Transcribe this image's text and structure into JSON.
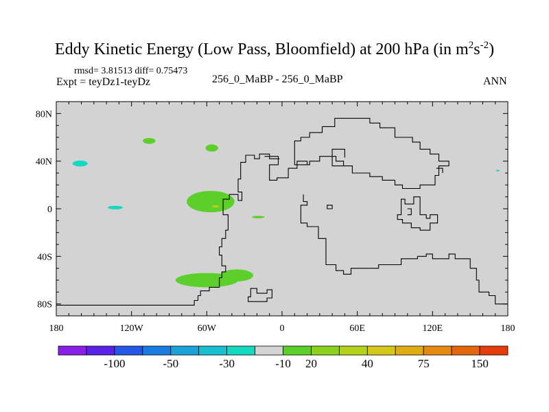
{
  "chart_data": {
    "type": "heatmap",
    "title": "Eddy Kinetic Energy (Low Pass, Bloomfield) at 200 hPa (in m",
    "title_units": {
      "sup1": "2",
      "mid": "s",
      "sup2": "-2",
      "close": ")"
    },
    "stats": "rmsd= 3.81513 diff= 0.75473",
    "expt": "Expt = teyDz1-teyDz",
    "center_label": "256_0_MaBP - 256_0_MaBP",
    "season": "ANN",
    "xlim": [
      -180,
      180
    ],
    "ylim": [
      -90,
      90
    ],
    "x_ticks": [
      {
        "value": -180,
        "label": "180"
      },
      {
        "value": -120,
        "label": "120W"
      },
      {
        "value": -60,
        "label": "60W"
      },
      {
        "value": 0,
        "label": "0"
      },
      {
        "value": 60,
        "label": "60E"
      },
      {
        "value": 120,
        "label": "120E"
      },
      {
        "value": 180,
        "label": "180"
      }
    ],
    "y_ticks": [
      {
        "value": 80,
        "label": "80N"
      },
      {
        "value": 40,
        "label": "40N"
      },
      {
        "value": 0,
        "label": "0"
      },
      {
        "value": -40,
        "label": "40S"
      },
      {
        "value": -80,
        "label": "80S"
      }
    ],
    "background_color": "#d3d3d3",
    "colorbar": {
      "colors": [
        "#8a1fe8",
        "#5a22e6",
        "#2457e6",
        "#1a7be0",
        "#1aa2d8",
        "#18c0d0",
        "#14d8c0",
        "#d3d3d3",
        "#5ccf2a",
        "#8ad21e",
        "#b4d21a",
        "#d4c81a",
        "#e0ac14",
        "#e48a10",
        "#e4660c",
        "#e43c0c"
      ],
      "labels": [
        {
          "after_index": 1,
          "label": "-100"
        },
        {
          "after_index": 3,
          "label": "-50"
        },
        {
          "after_index": 5,
          "label": "-30"
        },
        {
          "after_index": 7,
          "label": "-10"
        },
        {
          "after_index": 8,
          "label": "20"
        },
        {
          "after_index": 10,
          "label": "40"
        },
        {
          "after_index": 12,
          "label": "75"
        },
        {
          "after_index": 14,
          "label": "150"
        }
      ]
    },
    "regions": [
      {
        "name": "anomaly-green-a",
        "color": "#5ccf2a",
        "lon": -106,
        "lat": 57,
        "rlon": 5,
        "rlat": 2.5
      },
      {
        "name": "anomaly-green-b",
        "color": "#5ccf2a",
        "lon": -56,
        "lat": 51,
        "rlon": 5,
        "rlat": 3
      },
      {
        "name": "anomaly-cyan-a",
        "color": "#14d8c0",
        "lon": -161,
        "lat": 38,
        "rlon": 6,
        "rlat": 2.5
      },
      {
        "name": "anomaly-cyan-b",
        "color": "#14d8c0",
        "lon": -133,
        "lat": 1,
        "rlon": 6,
        "rlat": 1.5
      },
      {
        "name": "anomaly-cyan-c",
        "color": "#14d8c0",
        "lon": 172,
        "lat": 32,
        "rlon": 1.5,
        "rlat": 0.7
      },
      {
        "name": "anomaly-green-c",
        "color": "#5ccf2a",
        "lon": -57,
        "lat": 6,
        "rlon": 19,
        "rlat": 9
      },
      {
        "name": "anomaly-yellow-a",
        "color": "#b4d21a",
        "lon": -53,
        "lat": 2,
        "rlon": 3,
        "rlat": 1
      },
      {
        "name": "anomaly-green-d",
        "color": "#5ccf2a",
        "lon": -19,
        "lat": -7,
        "rlon": 5,
        "rlat": 1
      },
      {
        "name": "anomaly-green-e",
        "color": "#5ccf2a",
        "lon": -60,
        "lat": -60,
        "rlon": 25,
        "rlat": 6
      },
      {
        "name": "anomaly-green-f",
        "color": "#5ccf2a",
        "lon": -36,
        "lat": -56,
        "rlon": 13,
        "rlat": 5
      }
    ],
    "land_outlines": [
      {
        "name": "coastline-americas-west",
        "closed": false,
        "points": [
          [
            -180,
            -81
          ],
          [
            -70,
            -81
          ],
          [
            -70,
            -77
          ],
          [
            -67,
            -77
          ],
          [
            -67,
            -73
          ],
          [
            -65,
            -73
          ],
          [
            -65,
            -69
          ],
          [
            -58,
            -69
          ],
          [
            -58,
            -66
          ],
          [
            -50,
            -66
          ],
          [
            -50,
            -58
          ],
          [
            -48,
            -58
          ],
          [
            -48,
            -53
          ],
          [
            -45,
            -53
          ],
          [
            -45,
            -48
          ],
          [
            -48,
            -48
          ],
          [
            -48,
            -39
          ],
          [
            -50,
            -39
          ],
          [
            -50,
            -32
          ],
          [
            -48,
            -32
          ],
          [
            -48,
            -25
          ],
          [
            -45,
            -25
          ],
          [
            -45,
            -18
          ],
          [
            -43,
            -18
          ],
          [
            -43,
            -5
          ],
          [
            -47,
            -5
          ],
          [
            -47,
            8
          ],
          [
            -42,
            8
          ],
          [
            -42,
            12
          ],
          [
            -35,
            12
          ],
          [
            -35,
            7
          ],
          [
            -32,
            7
          ],
          [
            -32,
            14
          ],
          [
            -35,
            14
          ],
          [
            -35,
            25
          ],
          [
            -33,
            25
          ],
          [
            -33,
            39
          ],
          [
            -29,
            39
          ],
          [
            -29,
            45
          ],
          [
            -22,
            45
          ],
          [
            -22,
            42
          ],
          [
            -18,
            42
          ],
          [
            -18,
            46
          ],
          [
            -10,
            46
          ],
          [
            -10,
            42
          ],
          [
            -2,
            42
          ]
        ]
      },
      {
        "name": "coastline-eurasia-north",
        "closed": false,
        "points": [
          [
            10,
            48
          ],
          [
            10,
            57
          ],
          [
            15,
            57
          ],
          [
            15,
            60
          ],
          [
            22,
            60
          ],
          [
            22,
            64
          ],
          [
            32,
            64
          ],
          [
            32,
            69
          ],
          [
            42,
            69
          ],
          [
            42,
            76
          ],
          [
            70,
            76
          ],
          [
            70,
            72
          ],
          [
            78,
            72
          ],
          [
            78,
            68
          ],
          [
            90,
            68
          ],
          [
            90,
            60
          ],
          [
            104,
            60
          ],
          [
            104,
            56
          ],
          [
            110,
            56
          ],
          [
            110,
            50
          ],
          [
            118,
            50
          ],
          [
            118,
            46
          ],
          [
            125,
            46
          ],
          [
            125,
            40
          ],
          [
            133,
            40
          ],
          [
            133,
            36
          ],
          [
            125,
            36
          ],
          [
            125,
            28
          ],
          [
            122,
            28
          ],
          [
            122,
            20
          ],
          [
            110,
            20
          ],
          [
            110,
            17
          ],
          [
            96,
            17
          ],
          [
            96,
            20
          ],
          [
            90,
            20
          ],
          [
            90,
            24
          ],
          [
            80,
            24
          ],
          [
            80,
            27
          ],
          [
            70,
            27
          ],
          [
            70,
            30
          ],
          [
            56,
            30
          ],
          [
            56,
            36
          ],
          [
            49,
            36
          ],
          [
            49,
            40
          ],
          [
            43,
            40
          ],
          [
            43,
            44
          ],
          [
            30,
            44
          ],
          [
            30,
            40
          ],
          [
            22,
            40
          ],
          [
            22,
            37
          ],
          [
            10,
            37
          ],
          [
            10,
            48
          ]
        ]
      },
      {
        "name": "coastline-arabia",
        "closed": false,
        "points": [
          [
            50,
            43
          ],
          [
            50,
            50
          ],
          [
            40,
            50
          ],
          [
            40,
            36
          ],
          [
            50,
            36
          ]
        ]
      },
      {
        "name": "coastline-africa",
        "closed": false,
        "points": [
          [
            20,
            37
          ],
          [
            20,
            40
          ],
          [
            12,
            40
          ],
          [
            12,
            34
          ],
          [
            5,
            34
          ],
          [
            5,
            26
          ],
          [
            -4,
            26
          ],
          [
            -4,
            24
          ],
          [
            -10,
            24
          ],
          [
            -10,
            37
          ],
          [
            -3,
            37
          ],
          [
            -3,
            44
          ],
          [
            -14,
            44
          ]
        ]
      },
      {
        "name": "coastline-south",
        "closed": false,
        "points": [
          [
            17,
            12
          ],
          [
            17,
            6
          ],
          [
            20,
            6
          ],
          [
            20,
            3
          ],
          [
            15,
            3
          ],
          [
            15,
            -12
          ],
          [
            20,
            -12
          ],
          [
            20,
            -15
          ],
          [
            29,
            -15
          ],
          [
            29,
            -25
          ],
          [
            35,
            -25
          ],
          [
            35,
            -47
          ],
          [
            43,
            -47
          ],
          [
            43,
            -52
          ],
          [
            49,
            -52
          ],
          [
            49,
            -55
          ],
          [
            55,
            -55
          ],
          [
            55,
            -50
          ],
          [
            77,
            -50
          ],
          [
            77,
            -47
          ],
          [
            95,
            -47
          ],
          [
            95,
            -42
          ],
          [
            108,
            -42
          ],
          [
            108,
            -40
          ],
          [
            115,
            -40
          ],
          [
            115,
            -38
          ],
          [
            120,
            -38
          ],
          [
            120,
            -42
          ],
          [
            133,
            -42
          ],
          [
            133,
            -38
          ],
          [
            138,
            -38
          ],
          [
            138,
            -42
          ],
          [
            150,
            -42
          ],
          [
            150,
            -50
          ],
          [
            155,
            -50
          ],
          [
            155,
            -60
          ],
          [
            157,
            -60
          ],
          [
            157,
            -70
          ],
          [
            165,
            -70
          ],
          [
            165,
            -73
          ],
          [
            170,
            -73
          ],
          [
            170,
            -80
          ],
          [
            180,
            -80
          ]
        ]
      },
      {
        "name": "coastline-east-ring",
        "closed": true,
        "points": [
          [
            95,
            8
          ],
          [
            98,
            8
          ],
          [
            98,
            4
          ],
          [
            105,
            4
          ],
          [
            105,
            10
          ],
          [
            110,
            10
          ],
          [
            110,
            -5
          ],
          [
            115,
            -5
          ],
          [
            115,
            -8
          ],
          [
            118,
            -8
          ],
          [
            118,
            -5
          ],
          [
            124,
            -5
          ],
          [
            124,
            -12
          ],
          [
            118,
            -12
          ],
          [
            118,
            -18
          ],
          [
            110,
            -18
          ],
          [
            110,
            -16
          ],
          [
            103,
            -16
          ],
          [
            103,
            -12
          ],
          [
            96,
            -12
          ],
          [
            96,
            -9
          ],
          [
            92,
            -9
          ],
          [
            92,
            -5
          ],
          [
            95,
            -5
          ]
        ]
      },
      {
        "name": "coastline-east-inner",
        "closed": false,
        "points": [
          [
            100,
            -5
          ],
          [
            103,
            -5
          ],
          [
            103,
            0
          ],
          [
            100,
            0
          ]
        ]
      },
      {
        "name": "coastline-small-loop",
        "closed": true,
        "points": [
          [
            36,
            0
          ],
          [
            36,
            3
          ],
          [
            40,
            3
          ],
          [
            40,
            0
          ]
        ]
      },
      {
        "name": "coastline-far-east",
        "closed": false,
        "points": [
          [
            123,
            34
          ],
          [
            128,
            34
          ],
          [
            128,
            30
          ]
        ]
      },
      {
        "name": "coastline-island-south",
        "closed": true,
        "points": [
          [
            -25,
            -67
          ],
          [
            -25,
            -74
          ],
          [
            -27,
            -74
          ],
          [
            -27,
            -78
          ],
          [
            -12,
            -78
          ],
          [
            -12,
            -75
          ],
          [
            -8,
            -75
          ],
          [
            -8,
            -68
          ],
          [
            -12,
            -68
          ],
          [
            -12,
            -71
          ],
          [
            -20,
            -71
          ],
          [
            -20,
            -67
          ]
        ]
      }
    ]
  }
}
